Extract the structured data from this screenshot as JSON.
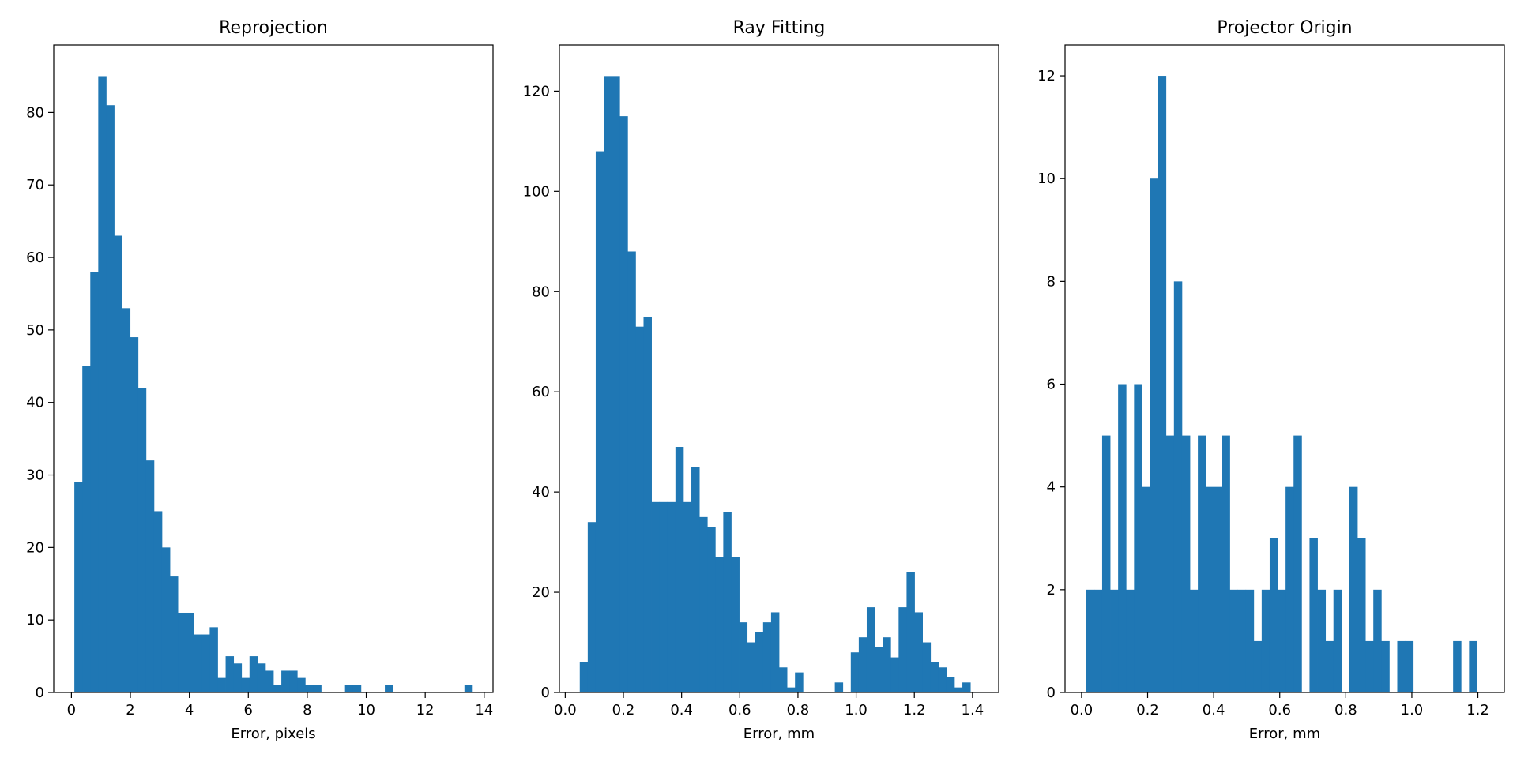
{
  "colors": {
    "bar": "#1f77b4",
    "axes": "#000000",
    "background": "#ffffff"
  },
  "chart_data": [
    {
      "type": "bar",
      "title": "Reprojection",
      "xlabel": "Error, pixels",
      "ylabel": "",
      "bin_start": 0.1,
      "bin_width": 0.27,
      "values": [
        29,
        45,
        58,
        85,
        81,
        63,
        53,
        49,
        42,
        32,
        25,
        20,
        16,
        11,
        11,
        8,
        8,
        9,
        2,
        5,
        4,
        2,
        5,
        4,
        3,
        1,
        3,
        3,
        2,
        1,
        1,
        0,
        0,
        0,
        1,
        1,
        0,
        0,
        0,
        1,
        0,
        0,
        0,
        0,
        0,
        0,
        0,
        0,
        0,
        1
      ],
      "xlim": [
        -0.6,
        14.3
      ],
      "ylim": [
        0,
        89.3
      ],
      "xticks": [
        0,
        2,
        4,
        6,
        8,
        10,
        12,
        14
      ],
      "xtick_labels": [
        "0",
        "2",
        "4",
        "6",
        "8",
        "10",
        "12",
        "14"
      ],
      "yticks": [
        0,
        10,
        20,
        30,
        40,
        50,
        60,
        70,
        80
      ],
      "ytick_labels": [
        "0",
        "10",
        "20",
        "30",
        "40",
        "50",
        "60",
        "70",
        "80"
      ],
      "grid": false,
      "legend": "none"
    },
    {
      "type": "bar",
      "title": "Ray Fitting",
      "xlabel": "Error, mm",
      "ylabel": "",
      "bin_start": 0.05,
      "bin_width": 0.0274,
      "values": [
        6,
        34,
        108,
        123,
        123,
        115,
        88,
        73,
        75,
        38,
        38,
        38,
        49,
        38,
        45,
        35,
        33,
        27,
        36,
        27,
        14,
        10,
        12,
        14,
        16,
        5,
        1,
        4,
        0,
        0,
        0,
        0,
        2,
        0,
        8,
        11,
        17,
        9,
        11,
        7,
        17,
        24,
        16,
        10,
        6,
        5,
        3,
        1,
        2
      ],
      "xlim": [
        -0.02,
        1.49
      ],
      "ylim": [
        0,
        129.2
      ],
      "xticks": [
        0.0,
        0.2,
        0.4,
        0.6,
        0.8,
        1.0,
        1.2,
        1.4
      ],
      "xtick_labels": [
        "0.0",
        "0.2",
        "0.4",
        "0.6",
        "0.8",
        "1.0",
        "1.2",
        "1.4"
      ],
      "yticks": [
        0,
        20,
        40,
        60,
        80,
        100,
        120
      ],
      "ytick_labels": [
        "0",
        "20",
        "40",
        "60",
        "80",
        "100",
        "120"
      ],
      "grid": false,
      "legend": "none"
    },
    {
      "type": "bar",
      "title": "Projector Origin",
      "xlabel": "Error, mm",
      "ylabel": "",
      "bin_start": 0.014,
      "bin_width": 0.02415,
      "values": [
        2,
        2,
        5,
        2,
        6,
        2,
        6,
        4,
        10,
        12,
        5,
        8,
        5,
        2,
        5,
        4,
        4,
        5,
        2,
        2,
        2,
        1,
        2,
        3,
        2,
        4,
        5,
        0,
        3,
        2,
        1,
        2,
        0,
        4,
        3,
        1,
        2,
        1,
        0,
        1,
        1,
        0,
        0,
        0,
        0,
        0,
        1,
        0,
        1
      ],
      "xlim": [
        -0.05,
        1.28
      ],
      "ylim": [
        0,
        12.6
      ],
      "xticks": [
        0.0,
        0.2,
        0.4,
        0.6,
        0.8,
        1.0,
        1.2
      ],
      "xtick_labels": [
        "0.0",
        "0.2",
        "0.4",
        "0.6",
        "0.8",
        "1.0",
        "1.2"
      ],
      "yticks": [
        0,
        2,
        4,
        6,
        8,
        10,
        12
      ],
      "ytick_labels": [
        "0",
        "2",
        "4",
        "6",
        "8",
        "10",
        "12"
      ],
      "grid": false,
      "legend": "none"
    }
  ]
}
